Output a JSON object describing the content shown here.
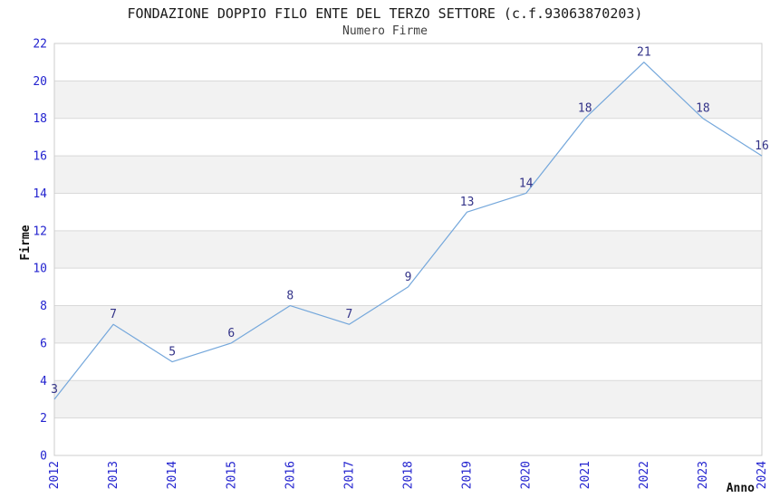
{
  "chart_data": {
    "type": "line",
    "title": "FONDAZIONE DOPPIO FILO ENTE DEL TERZO SETTORE (c.f.93063870203)",
    "subtitle": "Numero Firme",
    "xlabel": "Anno",
    "ylabel": "Firme",
    "categories": [
      "2012",
      "2013",
      "2014",
      "2015",
      "2016",
      "2017",
      "2018",
      "2019",
      "2020",
      "2021",
      "2022",
      "2023",
      "2024"
    ],
    "values": [
      3,
      7,
      5,
      6,
      8,
      7,
      9,
      13,
      14,
      18,
      21,
      18,
      16
    ],
    "point_labels": [
      "3",
      "7",
      "5",
      "6",
      "8",
      "7",
      "9",
      "13",
      "14",
      "18",
      "21",
      "18",
      "16"
    ],
    "ylim": [
      0,
      22
    ],
    "ytick_step": 2,
    "yticks": [
      0,
      2,
      4,
      6,
      8,
      10,
      12,
      14,
      16,
      18,
      20,
      22
    ],
    "legend": "none",
    "grid": "horizontal-bands",
    "markers": "none",
    "colors": {
      "line": "#74a7db",
      "tick_label": "#2323cf",
      "point_label": "#333388",
      "band_alt": "#f2f2f2",
      "band_main": "#ffffff",
      "gridline": "#d9d9d9",
      "plot_border": "#cccccc",
      "title": "#1a1a1a",
      "subtitle": "#404040",
      "axis_title": "#111111",
      "background": "#ffffff"
    }
  }
}
